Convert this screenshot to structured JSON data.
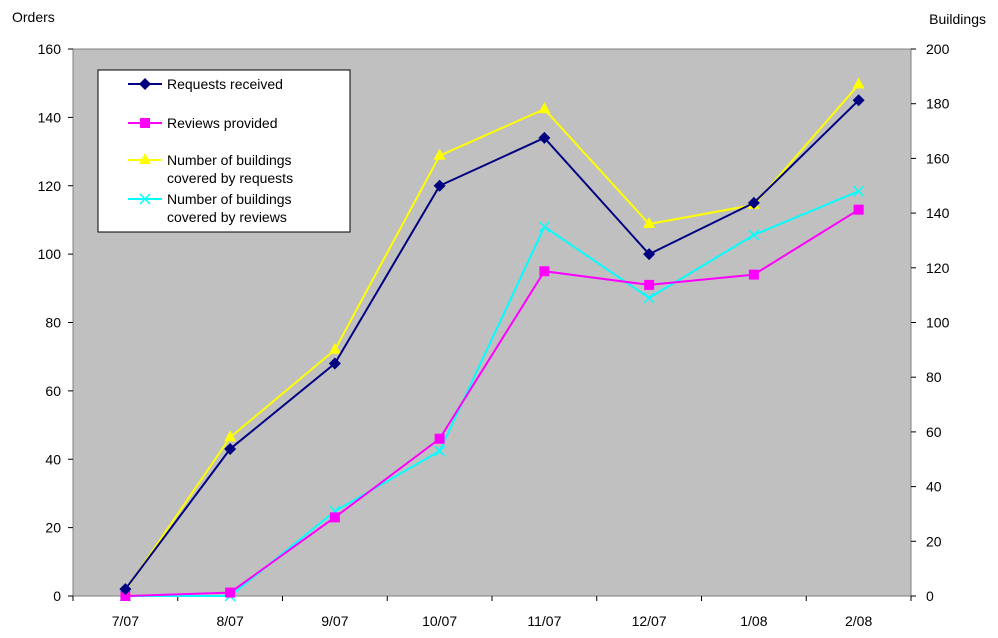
{
  "chart_data": {
    "type": "line",
    "title": "",
    "ylabel_left": "Orders",
    "ylabel_right": "Buildings",
    "xlabel": "",
    "categories": [
      "7/07",
      "8/07",
      "9/07",
      "10/07",
      "11/07",
      "12/07",
      "1/08",
      "2/08"
    ],
    "ylim_left": [
      0,
      160
    ],
    "ylim_right": [
      0,
      200
    ],
    "yticks_left": [
      0,
      20,
      40,
      60,
      80,
      100,
      120,
      140,
      160
    ],
    "yticks_right": [
      0,
      20,
      40,
      60,
      80,
      100,
      120,
      140,
      160,
      180,
      200
    ],
    "grid": false,
    "legend_position": "top-left",
    "plot_background": "#c0c0c0",
    "series": [
      {
        "name": "Requests received",
        "axis": "left",
        "color": "#000080",
        "marker": "diamond",
        "values": [
          2,
          43,
          68,
          120,
          134,
          100,
          115,
          145
        ]
      },
      {
        "name": "Reviews provided",
        "axis": "left",
        "color": "#ff00ff",
        "marker": "square",
        "values": [
          0,
          1,
          23,
          46,
          95,
          91,
          94,
          113
        ]
      },
      {
        "name": "Number of buildings\ncovered by requests",
        "axis": "right",
        "color": "#ffff00",
        "marker": "triangle",
        "values": [
          2,
          58,
          90,
          161,
          178,
          136,
          143,
          187
        ]
      },
      {
        "name": "Number of buildings\ncovered by reviews",
        "axis": "right",
        "color": "#00ffff",
        "marker": "x",
        "values": [
          0,
          0,
          31,
          53,
          135,
          109,
          132,
          148
        ]
      }
    ]
  }
}
